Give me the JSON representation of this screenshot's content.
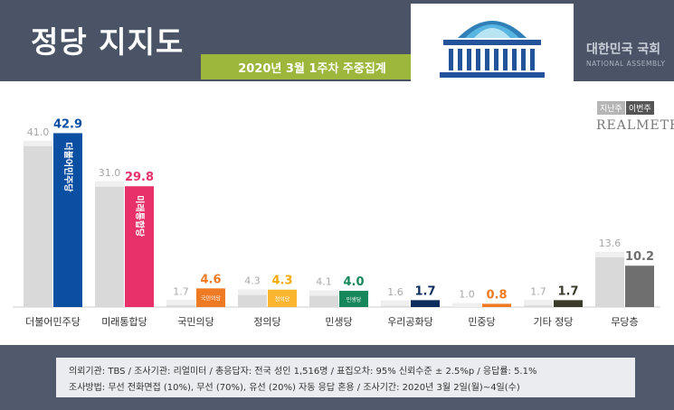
{
  "header": {
    "title": "정당 지지도",
    "subtitle": "2020년 3월 1주차 주중집계",
    "assembly_ko": "대한민국 국회",
    "assembly_en": "NATIONAL ASSEMBLY"
  },
  "legend": {
    "previous": "지난주",
    "current": "이번주"
  },
  "brand": "REALMETER",
  "footer": {
    "line1": "의뢰기관:  TBS  /  조사기관:  리얼미터  /  총응답자:  전국 성인 1,516명  /  표집오차:  95%  신뢰수준  ± 2.5%p  /  응답률:  5.1%",
    "line2": "조사방법:  무선 전화면접 (10%), 무선 (70%), 유선 (20%)  자동 응답 혼용  /  조사기간:  2020년 3월 2일(월)~4일(수)"
  },
  "chart_data": {
    "type": "bar",
    "title": "정당 지지도",
    "subtitle": "2020년 3월 1주차 주중집계",
    "categories": [
      "더불어민주당",
      "미래통합당",
      "국민의당",
      "정의당",
      "민생당",
      "우리공화당",
      "민중당",
      "기타 정당",
      "무당층"
    ],
    "series": [
      {
        "name": "지난주",
        "values": [
          41.0,
          31.0,
          1.7,
          4.3,
          4.1,
          1.6,
          1.0,
          1.7,
          13.6
        ]
      },
      {
        "name": "이번주",
        "values": [
          42.9,
          29.8,
          4.6,
          4.3,
          4.0,
          1.7,
          0.8,
          1.7,
          10.2
        ]
      }
    ],
    "value_labels": {
      "previous": [
        "41.0",
        "31.0",
        "1.7",
        "4.3",
        "4.1",
        "1.6",
        "1.0",
        "1.7",
        "13.6"
      ],
      "current": [
        "42.9",
        "29.8",
        "4.6",
        "4.3",
        "4.0",
        "1.7",
        "0.8",
        "1.7",
        "10.2"
      ]
    },
    "current_colors": [
      "#0a4fa2",
      "#e8306a",
      "#ef7a24",
      "#fbb52f",
      "#16875a",
      "#0b2c5c",
      "#ef7a24",
      "#3a3a2a",
      "#6f6f6f"
    ],
    "current_label_colors": [
      "#0a4fa2",
      "#e8306a",
      "#ef7a24",
      "#f2a900",
      "#16875a",
      "#0b2c5c",
      "#ef7a24",
      "#3a3a2a",
      "#6f6f6f"
    ],
    "bar_logos": [
      "더불어민주당",
      "미래통합당",
      "국민의당",
      "정의당",
      "민생당",
      "",
      "",
      "",
      ""
    ],
    "previous_color": "#d9d9d9",
    "ylim": [
      0,
      45
    ],
    "legend_position": "top-right",
    "grid": false
  }
}
